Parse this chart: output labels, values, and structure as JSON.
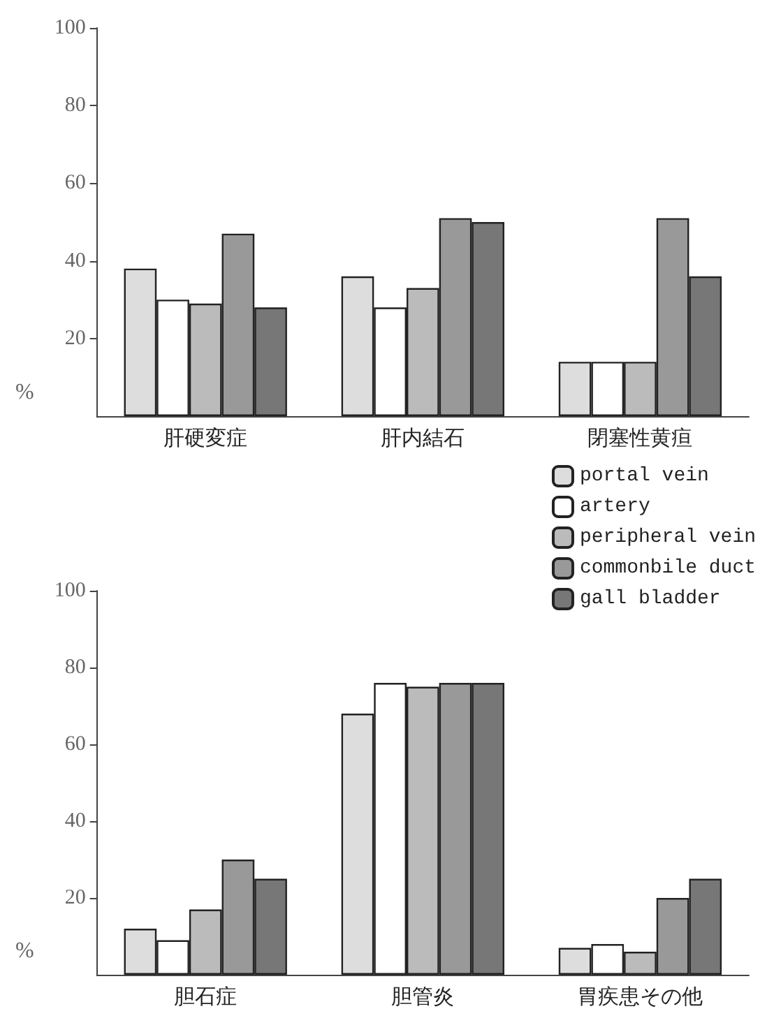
{
  "chart_data": [
    {
      "type": "bar",
      "categories": [
        "肝硬変症",
        "肝内結石",
        "閉塞性黄疸"
      ],
      "ylabel": "%",
      "ylim": [
        0,
        100
      ],
      "yticks": [
        20,
        40,
        60,
        80,
        100
      ],
      "grid": false,
      "legend": false,
      "series": [
        {
          "color": "#dddddd",
          "values": [
            38,
            36,
            14
          ]
        },
        {
          "color": "#ffffff",
          "values": [
            30,
            28,
            14
          ]
        },
        {
          "color": "#bbbbbb",
          "values": [
            29,
            33,
            14
          ]
        },
        {
          "color": "#999999",
          "values": [
            47,
            51,
            51
          ]
        },
        {
          "color": "#777777",
          "values": [
            28,
            50,
            36
          ]
        }
      ]
    },
    {
      "type": "bar",
      "categories": [
        "胆石症",
        "胆管炎",
        "胃疾患その他"
      ],
      "ylabel": "%",
      "ylim": [
        0,
        100
      ],
      "yticks": [
        20,
        40,
        60,
        80,
        100
      ],
      "grid": false,
      "legend": "top right",
      "series": [
        {
          "name": "portal vein",
          "color": "#dddddd",
          "values": [
            12,
            68,
            7
          ]
        },
        {
          "name": "artery",
          "color": "#ffffff",
          "values": [
            9,
            76,
            8
          ]
        },
        {
          "name": "peripheral vein",
          "color": "#bbbbbb",
          "values": [
            17,
            75,
            6
          ]
        },
        {
          "name": "commonbile duct",
          "color": "#999999",
          "values": [
            30,
            76,
            20
          ]
        },
        {
          "name": "gall bladder",
          "color": "#777777",
          "values": [
            25,
            76,
            25
          ]
        }
      ]
    }
  ]
}
